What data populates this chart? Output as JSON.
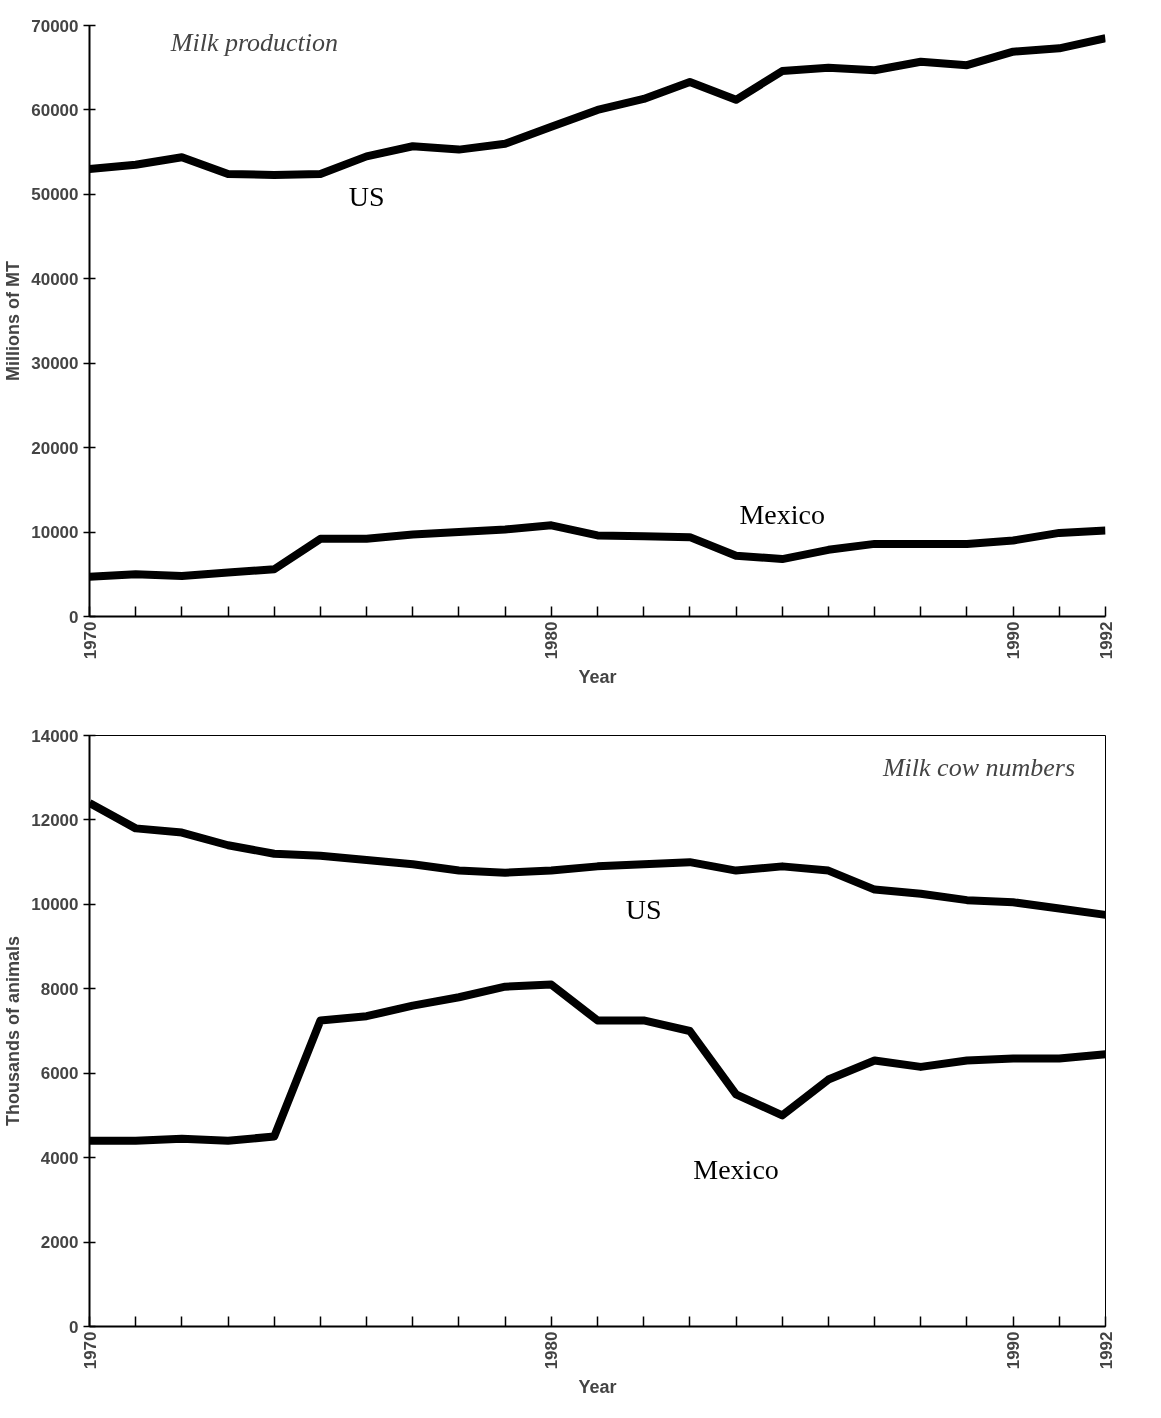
{
  "chart_data": [
    {
      "type": "line",
      "title": "Milk production",
      "xlabel": "Year",
      "ylabel": "Millions of MT",
      "x": [
        1970,
        1971,
        1972,
        1973,
        1974,
        1975,
        1976,
        1977,
        1978,
        1979,
        1980,
        1981,
        1982,
        1983,
        1984,
        1985,
        1986,
        1987,
        1988,
        1989,
        1990,
        1991,
        1992
      ],
      "series": [
        {
          "name": "US",
          "color": "#000000",
          "values": [
            53000,
            53500,
            54400,
            52400,
            52300,
            52400,
            54500,
            55700,
            55300,
            56000,
            58000,
            60000,
            61300,
            63300,
            61200,
            64600,
            65000,
            64700,
            65700,
            65300,
            66900,
            67300,
            68500
          ]
        },
        {
          "name": "Mexico",
          "color": "#000000",
          "values": [
            4700,
            5000,
            4800,
            5200,
            5600,
            9200,
            9200,
            9700,
            10000,
            10300,
            10800,
            9600,
            9500,
            9400,
            7200,
            6800,
            7900,
            8600,
            8600,
            8600,
            9000,
            9900,
            10200
          ]
        }
      ],
      "xlim": [
        1970,
        1992
      ],
      "xticks": [
        1970,
        {
          "value": 1971,
          "label": null
        },
        {
          "value": 1972,
          "label": null
        },
        {
          "value": 1973,
          "label": null
        },
        {
          "value": 1974,
          "label": null
        },
        {
          "value": 1975,
          "label": null
        },
        {
          "value": 1976,
          "label": null
        },
        {
          "value": 1977,
          "label": null
        },
        {
          "value": 1978,
          "label": null
        },
        {
          "value": 1979,
          "label": null
        },
        1980,
        {
          "value": 1981,
          "label": null
        },
        {
          "value": 1982,
          "label": null
        },
        {
          "value": 1983,
          "label": null
        },
        {
          "value": 1984,
          "label": null
        },
        {
          "value": 1985,
          "label": null
        },
        {
          "value": 1986,
          "label": null
        },
        {
          "value": 1987,
          "label": null
        },
        {
          "value": 1988,
          "label": null
        },
        {
          "value": 1989,
          "label": null
        },
        1990,
        {
          "value": 1991,
          "label": null
        },
        1992
      ],
      "ylim": [
        0,
        70000
      ],
      "yticks": [
        0,
        10000,
        20000,
        30000,
        40000,
        50000,
        60000,
        70000
      ],
      "grid": false,
      "legend": false,
      "line_style": "solid",
      "marker": "none"
    },
    {
      "type": "line",
      "title": "Milk cow numbers",
      "xlabel": "Year",
      "ylabel": "Thousands of animals",
      "x": [
        1970,
        1971,
        1972,
        1973,
        1974,
        1975,
        1976,
        1977,
        1978,
        1979,
        1980,
        1981,
        1982,
        1983,
        1984,
        1985,
        1986,
        1987,
        1988,
        1989,
        1990,
        1991,
        1992
      ],
      "series": [
        {
          "name": "US",
          "color": "#000000",
          "values": [
            12400,
            11800,
            11700,
            11400,
            11200,
            11150,
            11050,
            10950,
            10800,
            10750,
            10800,
            10900,
            10950,
            11000,
            10800,
            10900,
            10800,
            10350,
            10250,
            10100,
            10050,
            9900,
            9750
          ]
        },
        {
          "name": "Mexico",
          "color": "#000000",
          "values": [
            4400,
            4400,
            4450,
            4400,
            4500,
            7250,
            7350,
            7600,
            7800,
            8050,
            8100,
            7250,
            7250,
            7000,
            5500,
            5000,
            5850,
            6300,
            6150,
            6300,
            6350,
            6350,
            6450
          ]
        }
      ],
      "xlim": [
        1970,
        1992
      ],
      "xticks": [
        1970,
        {
          "value": 1971,
          "label": null
        },
        {
          "value": 1972,
          "label": null
        },
        {
          "value": 1973,
          "label": null
        },
        {
          "value": 1974,
          "label": null
        },
        {
          "value": 1975,
          "label": null
        },
        {
          "value": 1976,
          "label": null
        },
        {
          "value": 1977,
          "label": null
        },
        {
          "value": 1978,
          "label": null
        },
        {
          "value": 1979,
          "label": null
        },
        1980,
        {
          "value": 1981,
          "label": null
        },
        {
          "value": 1982,
          "label": null
        },
        {
          "value": 1983,
          "label": null
        },
        {
          "value": 1984,
          "label": null
        },
        {
          "value": 1985,
          "label": null
        },
        {
          "value": 1986,
          "label": null
        },
        {
          "value": 1987,
          "label": null
        },
        {
          "value": 1988,
          "label": null
        },
        {
          "value": 1989,
          "label": null
        },
        1990,
        {
          "value": 1991,
          "label": null
        },
        1992
      ],
      "ylim": [
        0,
        14000
      ],
      "yticks": [
        0,
        2000,
        4000,
        6000,
        8000,
        10000,
        12000,
        14000
      ],
      "grid": false,
      "legend": false,
      "line_style": "solid",
      "marker": "none"
    }
  ]
}
